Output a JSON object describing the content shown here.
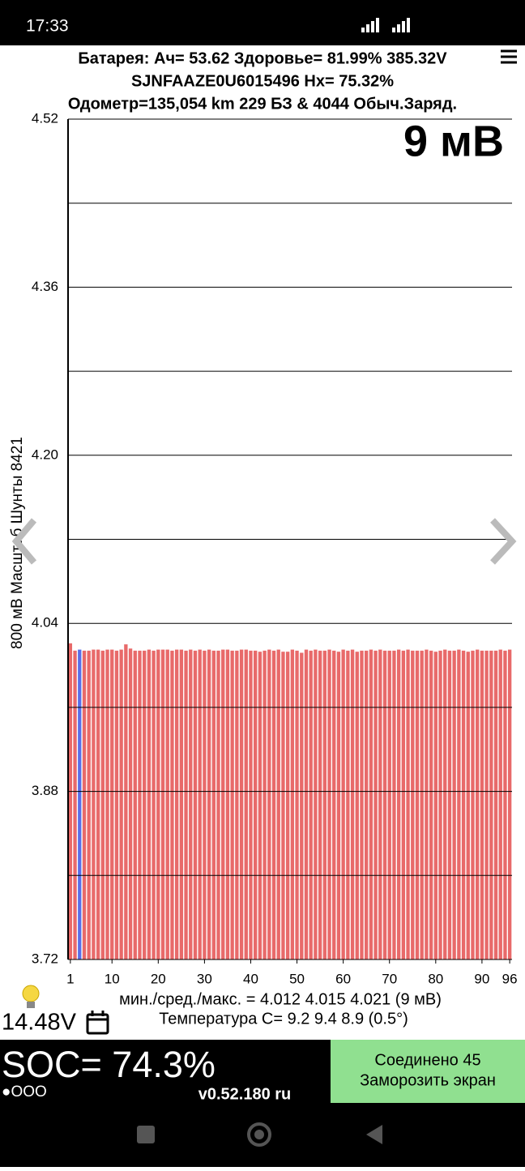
{
  "status_bar": {
    "time": "17:33"
  },
  "header": {
    "line1": "Батарея:  Ач= 53.62  Здоровье= 81.99%  385.32V",
    "line2": "SJNFAAZE0U6015496   Hx= 75.32%",
    "line3": "Одометр=135,054 km 229 БЗ & 4044 Обыч.Заряд."
  },
  "chart_data": {
    "type": "bar",
    "y_label": "800 мВ Масштаб  Шунты 8421",
    "annotation": "9 мВ",
    "x": [
      1,
      2,
      3,
      4,
      5,
      6,
      7,
      8,
      9,
      10,
      11,
      12,
      13,
      14,
      15,
      16,
      17,
      18,
      19,
      20,
      21,
      22,
      23,
      24,
      25,
      26,
      27,
      28,
      29,
      30,
      31,
      32,
      33,
      34,
      35,
      36,
      37,
      38,
      39,
      40,
      41,
      42,
      43,
      44,
      45,
      46,
      47,
      48,
      49,
      50,
      51,
      52,
      53,
      54,
      55,
      56,
      57,
      58,
      59,
      60,
      61,
      62,
      63,
      64,
      65,
      66,
      67,
      68,
      69,
      70,
      71,
      72,
      73,
      74,
      75,
      76,
      77,
      78,
      79,
      80,
      81,
      82,
      83,
      84,
      85,
      86,
      87,
      88,
      89,
      90,
      91,
      92,
      93,
      94,
      95,
      96
    ],
    "values": [
      4.021,
      4.014,
      4.015,
      4.014,
      4.014,
      4.015,
      4.015,
      4.014,
      4.015,
      4.015,
      4.014,
      4.015,
      4.02,
      4.016,
      4.014,
      4.014,
      4.014,
      4.015,
      4.014,
      4.015,
      4.015,
      4.015,
      4.014,
      4.015,
      4.015,
      4.014,
      4.015,
      4.014,
      4.015,
      4.014,
      4.015,
      4.014,
      4.014,
      4.015,
      4.015,
      4.014,
      4.014,
      4.015,
      4.015,
      4.014,
      4.014,
      4.013,
      4.014,
      4.015,
      4.014,
      4.015,
      4.013,
      4.013,
      4.015,
      4.014,
      4.012,
      4.015,
      4.014,
      4.015,
      4.014,
      4.014,
      4.015,
      4.014,
      4.013,
      4.015,
      4.014,
      4.015,
      4.013,
      4.014,
      4.014,
      4.015,
      4.014,
      4.015,
      4.014,
      4.014,
      4.014,
      4.015,
      4.014,
      4.015,
      4.014,
      4.014,
      4.014,
      4.015,
      4.014,
      4.013,
      4.014,
      4.015,
      4.014,
      4.014,
      4.015,
      4.014,
      4.013,
      4.014,
      4.015,
      4.014,
      4.014,
      4.014,
      4.014,
      4.015,
      4.014,
      4.015
    ],
    "colors": [
      "#e86a6a",
      "#e86a6a",
      "#5a6ee8",
      "#e86a6a",
      "#e86a6a",
      "#e86a6a",
      "#e86a6a",
      "#e86a6a",
      "#e86a6a",
      "#e86a6a",
      "#e86a6a",
      "#e86a6a",
      "#e86a6a",
      "#e86a6a",
      "#e86a6a",
      "#e86a6a",
      "#e86a6a",
      "#e86a6a",
      "#e86a6a",
      "#e86a6a",
      "#e86a6a",
      "#e86a6a",
      "#e86a6a",
      "#e86a6a",
      "#e86a6a",
      "#e86a6a",
      "#e86a6a",
      "#e86a6a",
      "#e86a6a",
      "#e86a6a",
      "#e86a6a",
      "#e86a6a",
      "#e86a6a",
      "#e86a6a",
      "#e86a6a",
      "#e86a6a",
      "#e86a6a",
      "#e86a6a",
      "#e86a6a",
      "#e86a6a",
      "#e86a6a",
      "#e86a6a",
      "#e86a6a",
      "#e86a6a",
      "#e86a6a",
      "#e86a6a",
      "#e86a6a",
      "#e86a6a",
      "#e86a6a",
      "#e86a6a",
      "#e86a6a",
      "#e86a6a",
      "#e86a6a",
      "#e86a6a",
      "#e86a6a",
      "#e86a6a",
      "#e86a6a",
      "#e86a6a",
      "#e86a6a",
      "#e86a6a",
      "#e86a6a",
      "#e86a6a",
      "#e86a6a",
      "#e86a6a",
      "#e86a6a",
      "#e86a6a",
      "#e86a6a",
      "#e86a6a",
      "#e86a6a",
      "#e86a6a",
      "#e86a6a",
      "#e86a6a",
      "#e86a6a",
      "#e86a6a",
      "#e86a6a",
      "#e86a6a",
      "#e86a6a",
      "#e86a6a",
      "#e86a6a",
      "#e86a6a",
      "#e86a6a",
      "#e86a6a",
      "#e86a6a",
      "#e86a6a",
      "#e86a6a",
      "#e86a6a",
      "#e86a6a",
      "#e86a6a",
      "#e86a6a",
      "#e86a6a",
      "#e86a6a",
      "#e86a6a",
      "#e86a6a",
      "#e86a6a",
      "#e86a6a",
      "#e86a6a"
    ],
    "xlim": [
      0.5,
      96.5
    ],
    "xticks": [
      1,
      10,
      20,
      30,
      40,
      50,
      60,
      70,
      80,
      90,
      96
    ],
    "ylim": [
      3.72,
      4.52
    ],
    "yticks": [
      3.72,
      3.88,
      4.04,
      {
        "value": 4.2,
        "label": "4.20"
      },
      4.36,
      4.52
    ],
    "ygrid": [
      3.8,
      3.96,
      4.12,
      4.28,
      4.44
    ],
    "grid": true
  },
  "stats": {
    "minmax": "мин./сред./макс. = 4.012 4.015 4.021  (9 мВ)",
    "temperature": "Температура C= 9.2  9.4  8.9  (0.5°)"
  },
  "footer": {
    "voltage": "14.48V",
    "soc": "SOC= 74.3%",
    "dots": "●OOO",
    "version": "v0.52.180 ru",
    "button": {
      "line1": "Соединено 45",
      "line2": "Заморозить экран"
    }
  }
}
